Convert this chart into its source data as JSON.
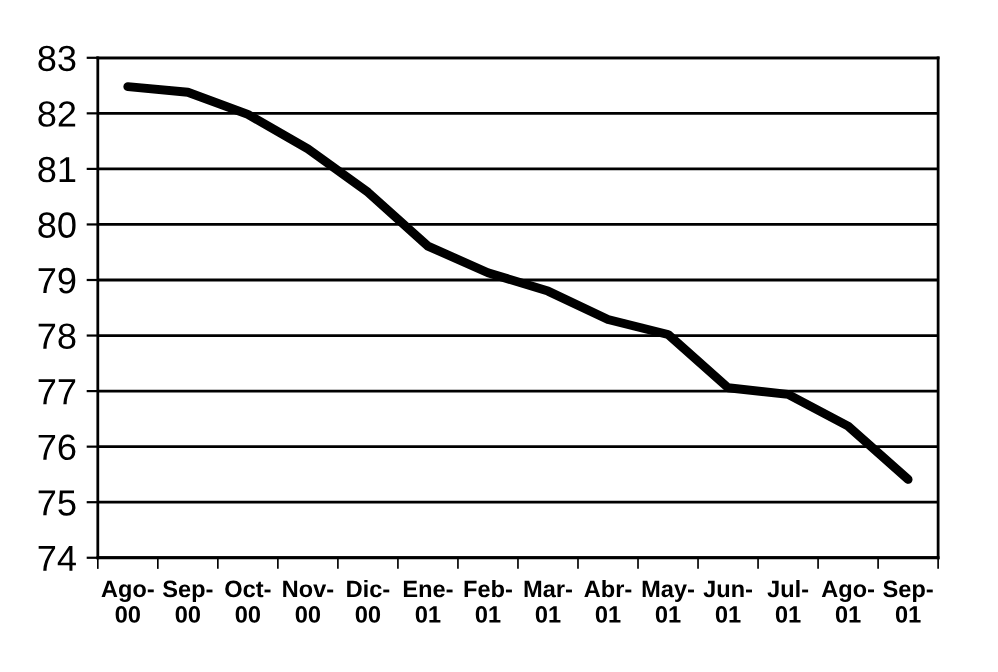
{
  "chart_data": {
    "type": "line",
    "categories": [
      "Ago-\n00",
      "Sep-\n00",
      "Oct-\n00",
      "Nov-\n00",
      "Dic-\n00",
      "Ene-\n01",
      "Feb-\n01",
      "Mar-\n01",
      "Abr-\n01",
      "May-\n01",
      "Jun-\n01",
      "Jul-\n01",
      "Ago-\n01",
      "Sep-\n01"
    ],
    "series": [
      {
        "color": "#000000",
        "values": [
          82.48,
          82.38,
          81.98,
          81.36,
          80.58,
          79.61,
          79.13,
          78.8,
          78.29,
          78.02,
          77.06,
          76.94,
          76.37,
          75.41
        ]
      }
    ],
    "ylim": [
      74,
      83
    ],
    "yticks": [
      74,
      75,
      76,
      77,
      78,
      79,
      80,
      81,
      82,
      83
    ],
    "grid": "y",
    "legend": false,
    "marker": "none",
    "line_style": "solid"
  }
}
